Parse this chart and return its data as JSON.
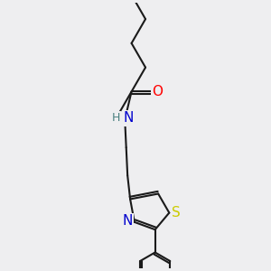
{
  "bg_color": "#eeeef0",
  "bond_color": "#1a1a1a",
  "bond_width": 1.5,
  "atom_colors": {
    "O": "#ff0000",
    "N": "#0000cd",
    "S": "#cccc00",
    "H": "#4a8080"
  },
  "font_size": 10,
  "figsize": [
    3.0,
    3.0
  ],
  "dpi": 100
}
